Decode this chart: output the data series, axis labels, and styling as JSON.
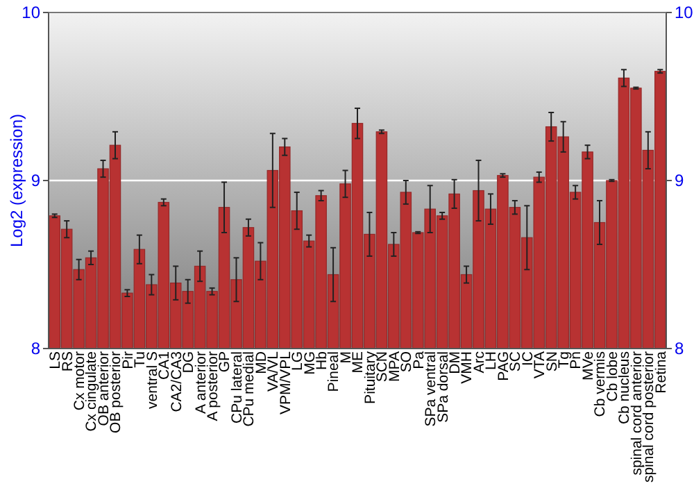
{
  "chart_data": {
    "type": "bar",
    "ylabel": "Log2 (expression)",
    "categories": [
      "LS",
      "RS",
      "Cx motor",
      "Cx cingulate",
      "OB anterior",
      "OB posterior",
      "Pir",
      "Tu",
      "ventral S",
      "CA1",
      "CA2/CA3",
      "DG",
      "A anterior",
      "A posterior",
      "GP",
      "CPu lateral",
      "CPu medial",
      "MD",
      "VA/VL",
      "VPM/VPL",
      "LG",
      "MG",
      "Hb",
      "Pineal",
      "M",
      "ME",
      "Pituitary",
      "SCN",
      "MPA",
      "SO",
      "Pa",
      "SPa ventral",
      "SPa dorsal",
      "DM",
      "VMH",
      "Arc",
      "LH",
      "PAG",
      "SC",
      "IC",
      "VTA",
      "SN",
      "Tg",
      "Pn",
      "MVe",
      "Cb vermis",
      "Cb lobe",
      "Cb nucleus",
      "spinal cord anterior",
      "spinal cord posterior",
      "Retina"
    ],
    "values": [
      8.79,
      8.71,
      8.47,
      8.54,
      9.07,
      9.21,
      8.33,
      8.59,
      8.38,
      8.87,
      8.39,
      8.34,
      8.49,
      8.34,
      8.84,
      8.41,
      8.72,
      8.52,
      9.06,
      9.2,
      8.82,
      8.64,
      8.91,
      8.44,
      8.98,
      9.34,
      8.68,
      9.29,
      8.62,
      8.93,
      8.69,
      8.83,
      8.79,
      8.92,
      8.44,
      8.94,
      8.83,
      9.03,
      8.84,
      8.66,
      9.02,
      9.32,
      9.26,
      8.93,
      9.17,
      8.75,
      9.0,
      9.61,
      9.55,
      9.18,
      9.65
    ],
    "errors": [
      0.01,
      0.05,
      0.06,
      0.04,
      0.05,
      0.08,
      0.02,
      0.085,
      0.06,
      0.02,
      0.1,
      0.07,
      0.09,
      0.02,
      0.15,
      0.13,
      0.05,
      0.11,
      0.22,
      0.05,
      0.11,
      0.035,
      0.03,
      0.16,
      0.08,
      0.09,
      0.13,
      0.01,
      0.07,
      0.07,
      0.005,
      0.14,
      0.02,
      0.085,
      0.05,
      0.18,
      0.09,
      0.01,
      0.04,
      0.19,
      0.03,
      0.085,
      0.09,
      0.04,
      0.04,
      0.13,
      0.005,
      0.05,
      0.005,
      0.11,
      0.01
    ],
    "color": "#b83232",
    "ylim": [
      8,
      10
    ],
    "yticks": [
      8,
      9,
      10
    ],
    "y2lim": [
      8,
      10
    ],
    "y2ticks": [
      8,
      9,
      10
    ],
    "grid": "y"
  }
}
